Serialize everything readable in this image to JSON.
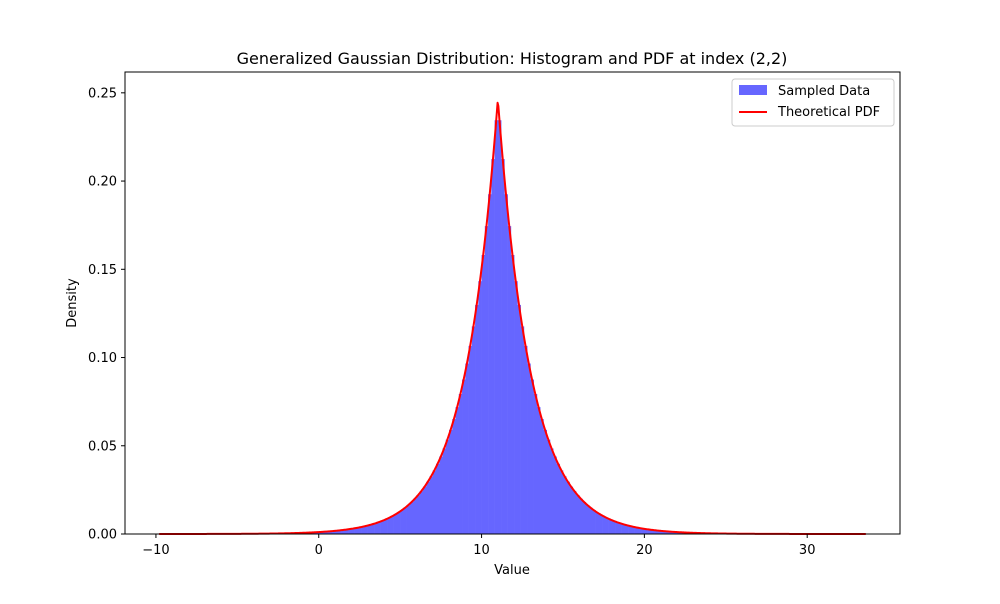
{
  "chart_data": {
    "type": "histogram",
    "title": "Generalized Gaussian Distribution: Histogram and PDF at index (2,2)",
    "xlabel": "Value",
    "ylabel": "Density",
    "xlim": [
      -11.9,
      35.7
    ],
    "ylim": [
      0,
      0.2618
    ],
    "x_ticks": [
      -10,
      0,
      10,
      20,
      30
    ],
    "y_ticks": [
      0.0,
      0.05,
      0.1,
      0.15,
      0.2,
      0.25
    ],
    "x_tick_labels": [
      "−10",
      "0",
      "10",
      "20",
      "30"
    ],
    "y_tick_labels": [
      "0.00",
      "0.05",
      "0.10",
      "0.15",
      "0.20",
      "0.25"
    ],
    "grid": false,
    "legend_position": "top-right",
    "distribution": {
      "location": 11.0,
      "scale": 2.03,
      "shape": 1.0,
      "support": [
        -9.8,
        33.6
      ]
    },
    "series": [
      {
        "name": "Sampled Data",
        "kind": "histogram",
        "color": "#6666ff",
        "bin_width": 0.2,
        "range": [
          -9.8,
          33.6
        ]
      },
      {
        "name": "Theoretical PDF",
        "kind": "line",
        "color": "#ff0000",
        "line_width": 2
      }
    ]
  }
}
